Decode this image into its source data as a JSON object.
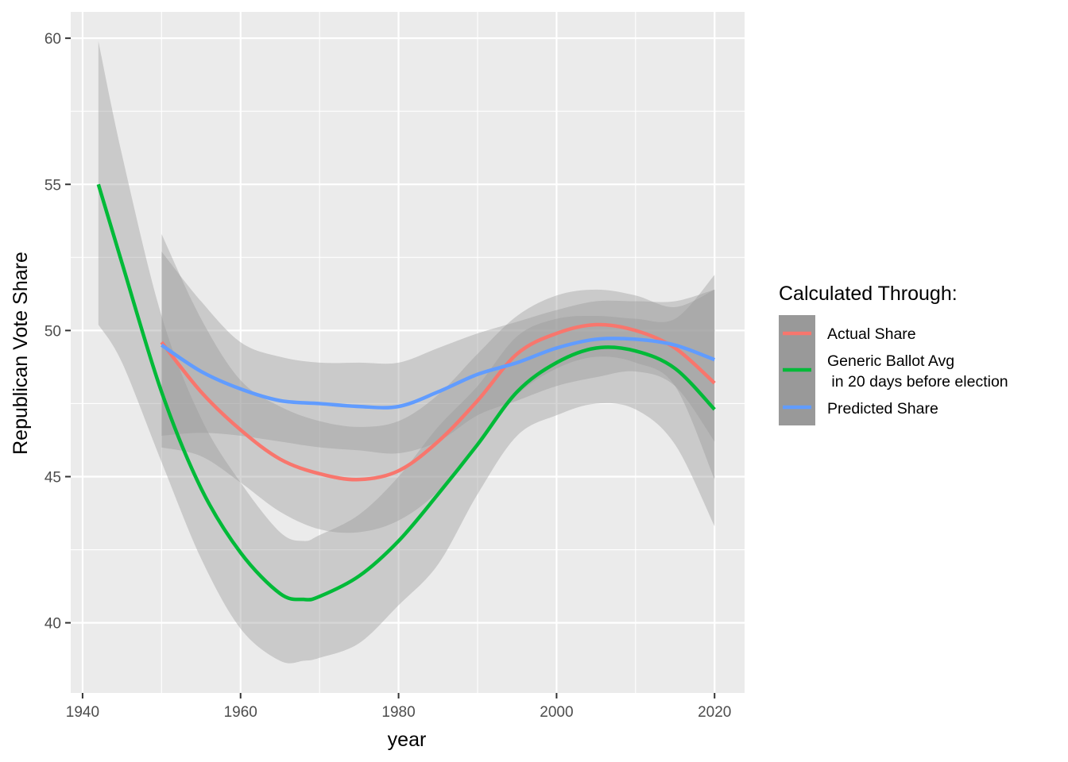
{
  "chart_data": {
    "type": "line",
    "xlabel": "year",
    "ylabel": "Republican Vote Share",
    "xlim": [
      1938.5,
      2023.8
    ],
    "ylim": [
      37.6,
      60.9
    ],
    "x_ticks": [
      1940,
      1960,
      1980,
      2000,
      2020
    ],
    "x_minor_ticks": [
      1950,
      1970,
      1990,
      2010
    ],
    "y_ticks": [
      40,
      45,
      50,
      55,
      60
    ],
    "y_minor_ticks": [
      42.5,
      47.5,
      52.5,
      57.5
    ],
    "x_tick_labels": [
      "1940",
      "1960",
      "1980",
      "2000",
      "2020"
    ],
    "y_tick_labels": [
      "40",
      "45",
      "50",
      "55",
      "60"
    ],
    "grid": true,
    "smoothed": true,
    "confidence_bands": true,
    "legend": {
      "title": "Calculated Through:",
      "placement": "right",
      "entries": [
        {
          "label": "Actual Share"
        },
        {
          "label": "Generic Ballot Avg",
          "label_line2": " in 20 days before election"
        },
        {
          "label": "Predicted Share"
        }
      ]
    },
    "series": [
      {
        "label": "Actual Share",
        "color": "#F8766D",
        "x": [
          1950,
          1955,
          1960,
          1965,
          1970,
          1975,
          1980,
          1985,
          1990,
          1995,
          2000,
          2005,
          2010,
          2015,
          2020
        ],
        "y": [
          49.6,
          47.9,
          46.6,
          45.6,
          45.1,
          44.9,
          45.2,
          46.2,
          47.6,
          49.2,
          49.9,
          50.2,
          50.0,
          49.4,
          48.2
        ],
        "lower": [
          46.0,
          45.7,
          44.8,
          43.8,
          43.2,
          43.1,
          43.5,
          44.5,
          46.2,
          47.8,
          48.7,
          49.1,
          48.9,
          48.1,
          44.9
        ],
        "upper": [
          53.3,
          50.4,
          48.3,
          47.4,
          46.9,
          46.7,
          46.9,
          47.8,
          49.2,
          50.5,
          51.2,
          51.4,
          51.2,
          50.8,
          51.4
        ]
      },
      {
        "label": "Generic Ballot Avg in 20 days before election",
        "color": "#00BA38",
        "x": [
          1942,
          1945,
          1950,
          1955,
          1960,
          1965,
          1968,
          1970,
          1975,
          1980,
          1985,
          1990,
          1995,
          2000,
          2005,
          2010,
          2015,
          2020
        ],
        "y": [
          55.0,
          52.3,
          47.9,
          44.6,
          42.4,
          41.0,
          40.8,
          40.9,
          41.6,
          42.8,
          44.4,
          46.1,
          47.9,
          48.9,
          49.4,
          49.3,
          48.7,
          47.3
        ],
        "lower": [
          50.2,
          48.9,
          45.5,
          42.2,
          39.8,
          38.7,
          38.7,
          38.8,
          39.3,
          40.6,
          42.0,
          44.4,
          46.4,
          47.1,
          47.5,
          47.3,
          46.1,
          43.3
        ],
        "upper": [
          59.9,
          56.0,
          50.5,
          47.0,
          44.8,
          43.1,
          42.8,
          43.0,
          43.7,
          45.0,
          46.7,
          48.1,
          49.8,
          50.4,
          50.5,
          50.4,
          50.4,
          51.9
        ]
      },
      {
        "label": "Predicted Share",
        "color": "#619CFF",
        "x": [
          1950,
          1955,
          1960,
          1965,
          1970,
          1975,
          1980,
          1985,
          1990,
          1995,
          2000,
          2005,
          2010,
          2015,
          2020
        ],
        "y": [
          49.5,
          48.6,
          48.0,
          47.6,
          47.5,
          47.4,
          47.4,
          47.9,
          48.5,
          48.9,
          49.4,
          49.7,
          49.7,
          49.5,
          49.0
        ],
        "lower": [
          46.4,
          46.5,
          46.4,
          46.2,
          46.0,
          45.9,
          45.8,
          46.2,
          47.1,
          47.6,
          48.1,
          48.4,
          48.6,
          48.1,
          46.2
        ],
        "upper": [
          52.7,
          51.0,
          49.6,
          49.1,
          48.9,
          48.9,
          48.9,
          49.4,
          49.9,
          50.3,
          50.7,
          51.0,
          51.0,
          51.0,
          51.4
        ]
      }
    ]
  }
}
